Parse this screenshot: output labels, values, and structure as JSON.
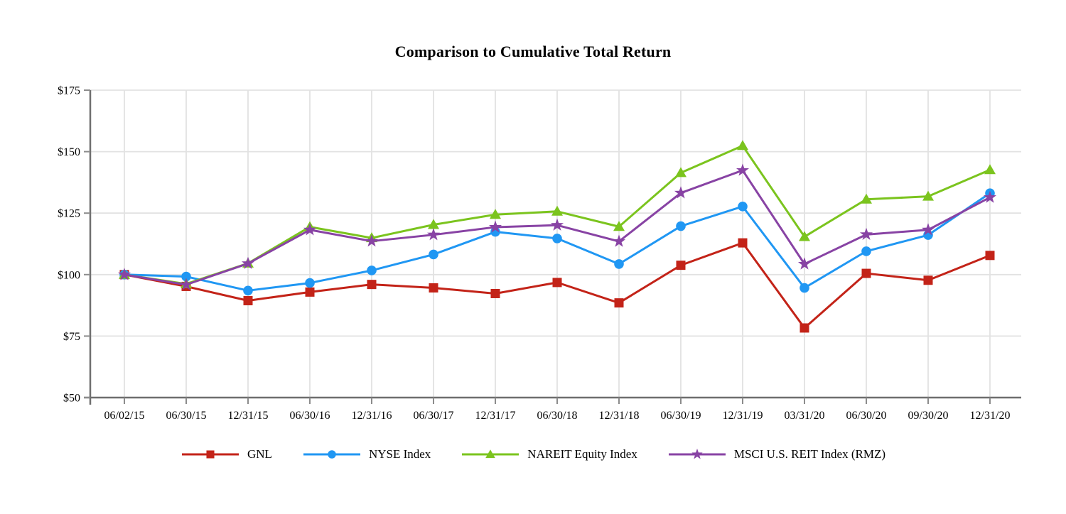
{
  "chart_data": {
    "type": "line",
    "title": "Comparison to Cumulative Total Return",
    "categories": [
      "06/02/15",
      "06/30/15",
      "12/31/15",
      "06/30/16",
      "12/31/16",
      "06/30/17",
      "12/31/17",
      "06/30/18",
      "12/31/18",
      "06/30/19",
      "12/31/19",
      "03/31/20",
      "06/30/20",
      "09/30/20",
      "12/31/20"
    ],
    "series": [
      {
        "name": "GNL",
        "marker": "square",
        "color": "#C32318",
        "values": [
          100.0,
          95.2,
          89.4,
          92.9,
          96.0,
          94.6,
          92.3,
          96.8,
          88.5,
          103.8,
          112.9,
          78.3,
          100.5,
          97.7,
          107.8
        ]
      },
      {
        "name": "NYSE Index",
        "marker": "circle",
        "color": "#2097F3",
        "values": [
          100.0,
          99.2,
          93.5,
          96.6,
          101.7,
          108.2,
          117.4,
          114.7,
          104.3,
          119.7,
          127.7,
          94.6,
          109.5,
          116.1,
          133.1
        ]
      },
      {
        "name": "NAREIT Equity Index",
        "marker": "triangle",
        "color": "#7BC41E",
        "values": [
          100.0,
          96.2,
          104.6,
          119.4,
          114.9,
          120.3,
          124.4,
          125.7,
          119.5,
          141.4,
          152.4,
          115.4,
          130.6,
          131.8,
          142.6
        ]
      },
      {
        "name": "MSCI U.S. REIT Index (RMZ)",
        "marker": "star",
        "color": "#8843A4",
        "values": [
          100.0,
          95.9,
          104.5,
          118.2,
          113.6,
          116.2,
          119.3,
          120.1,
          113.5,
          133.2,
          142.4,
          104.3,
          116.3,
          118.2,
          131.4
        ]
      }
    ],
    "y_axis": {
      "min": 50,
      "max": 175,
      "prefix": "$",
      "ticks": [
        {
          "value": 175,
          "label": "$175"
        },
        {
          "value": 150,
          "label": "$150"
        },
        {
          "value": 125,
          "label": "$125"
        },
        {
          "value": 100,
          "label": "$100"
        },
        {
          "value": 75,
          "label": "$75"
        },
        {
          "value": 50,
          "label": "$50"
        }
      ]
    },
    "xlabel": "",
    "ylabel": "",
    "grid": true,
    "legend_position": "bottom"
  },
  "colors": {
    "background": "#FFFFFF",
    "gridline": "#E2E2E2",
    "axis": "#6E6E6E",
    "tick": "#8C8C8C",
    "text": "#000000"
  }
}
